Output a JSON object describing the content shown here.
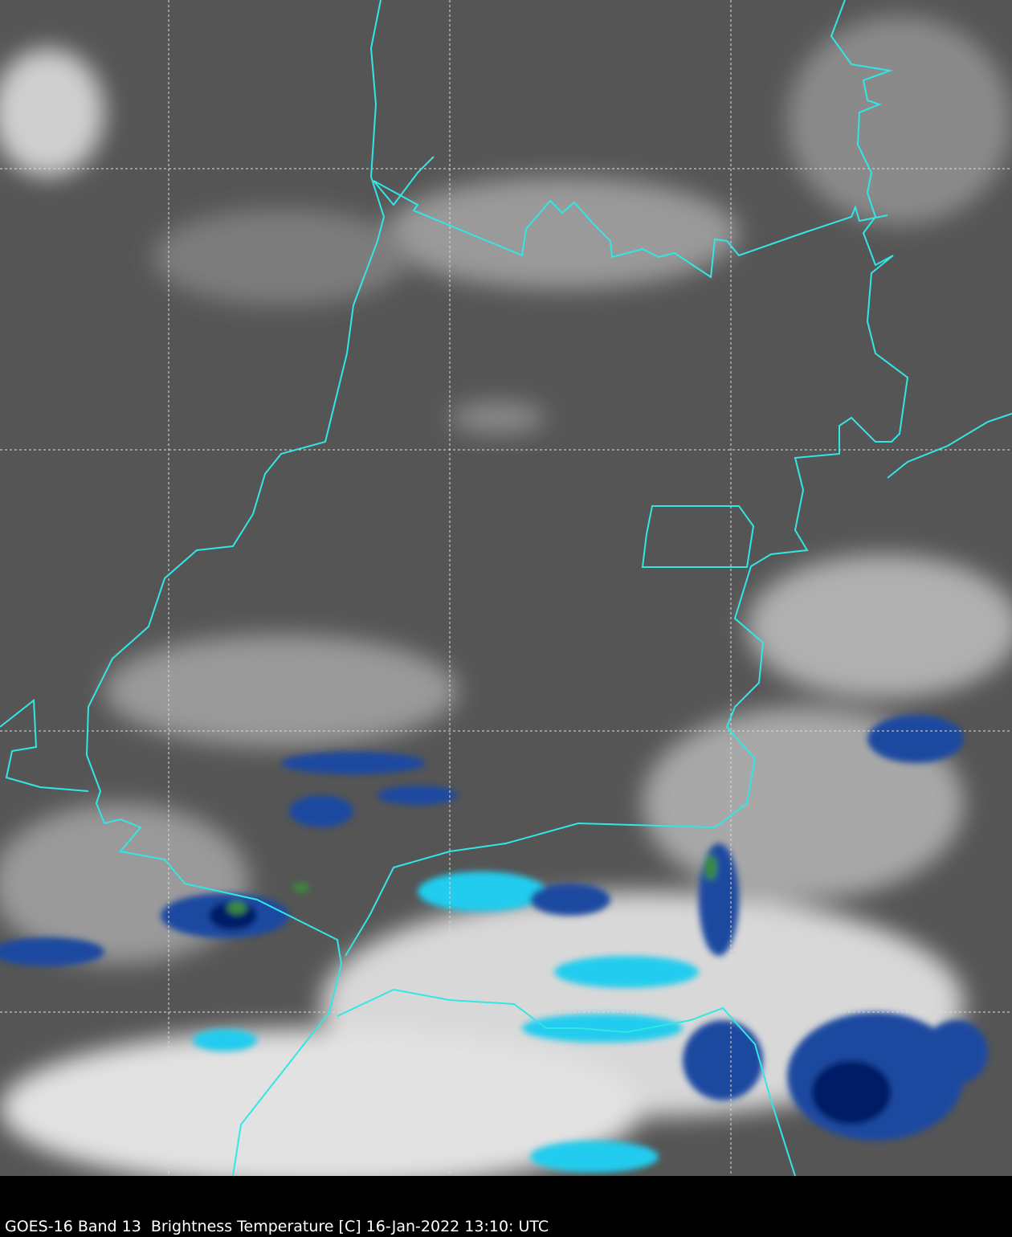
{
  "caption": "GOES-16 Band 13  Brightness Temperature [C] 16-Jan-2022 13:10: UTC",
  "colors": {
    "background_land": "#555555",
    "border": "#33e6e6",
    "grid": "#dddddd",
    "cold_cyan": "#22ccee",
    "cold_blue": "#1a4aa0",
    "coldest_navy": "#001a66",
    "coldest_green": "#3a8a3a"
  },
  "map": {
    "grid_style": "dashed",
    "colormap": "grayscale with cold cloud tops enhanced in cyan, blue, navy and green"
  }
}
